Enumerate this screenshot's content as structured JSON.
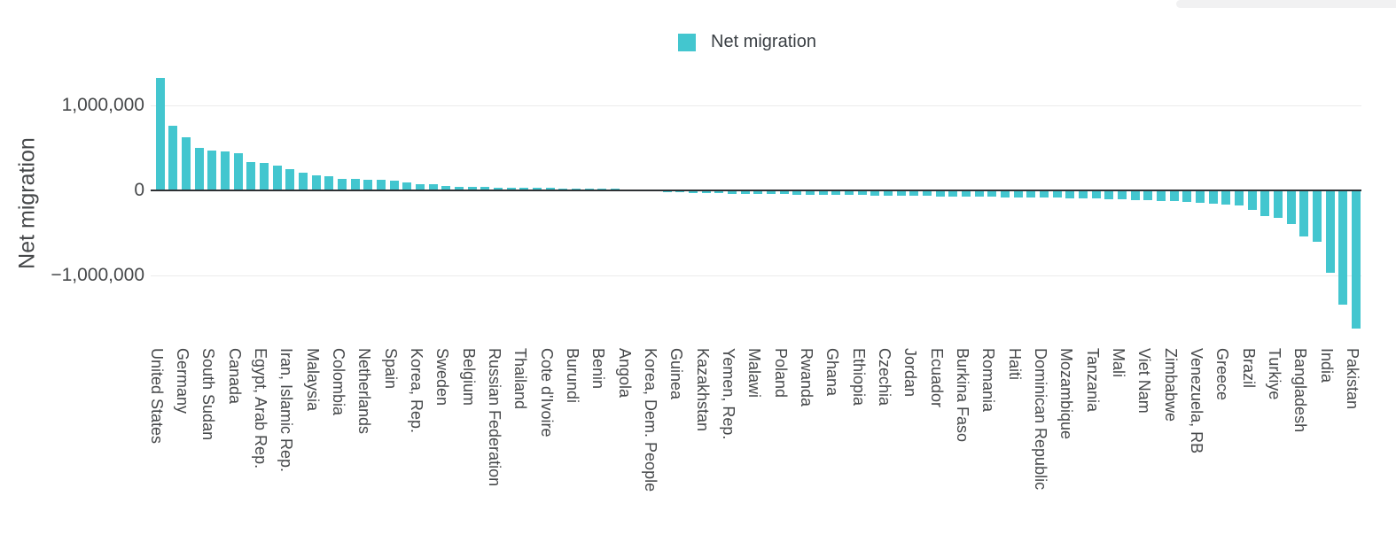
{
  "chart_data": {
    "type": "bar",
    "title": "",
    "legend": [
      "Net migration"
    ],
    "legend_position": "top-center",
    "ylabel": "Net migration",
    "xlabel": "",
    "grid": "horizontal",
    "ylim": [
      -1800000,
      1400000
    ],
    "yticks": [
      {
        "label": "1,000,000",
        "value": 1000000
      },
      {
        "label": "0",
        "value": 0
      },
      {
        "label": "−1,000,000",
        "value": -1000000
      }
    ],
    "bar_color": "#43C6CF",
    "x_label_every_n_bars": 2,
    "x_tick_labels": [
      "United States",
      "Germany",
      "South Sudan",
      "Canada",
      "Egypt, Arab Rep.",
      "Iran, Islamic Rep.",
      "Malaysia",
      "Colombia",
      "Netherlands",
      "Spain",
      "Korea, Rep.",
      "Sweden",
      "Belgium",
      "Russian Federation",
      "Thailand",
      "Cote d'Ivoire",
      "Burundi",
      "Benin",
      "Angola",
      "Korea, Dem. People",
      "Guinea",
      "Kazakhstan",
      "Yemen, Rep.",
      "Malawi",
      "Poland",
      "Rwanda",
      "Ghana",
      "Ethiopia",
      "Czechia",
      "Jordan",
      "Ecuador",
      "Burkina Faso",
      "Romania",
      "Haiti",
      "Dominican Republic",
      "Mozambique",
      "Tanzania",
      "Mali",
      "Viet Nam",
      "Zimbabwe",
      "Venezuela, RB",
      "Greece",
      "Brazil",
      "Turkiye",
      "Bangladesh",
      "India",
      "Pakistan"
    ],
    "series": [
      {
        "name": "Net migration",
        "values": [
          1320000,
          760000,
          620000,
          500000,
          470000,
          455000,
          440000,
          330000,
          320000,
          290000,
          250000,
          210000,
          175000,
          170000,
          140000,
          138000,
          128000,
          125000,
          118000,
          95000,
          75000,
          72000,
          50000,
          45000,
          40000,
          38000,
          36000,
          34000,
          32000,
          30000,
          28000,
          26000,
          24000,
          22000,
          20000,
          17000,
          14000,
          8000,
          -8000,
          -20000,
          -25000,
          -28000,
          -31000,
          -34000,
          -37000,
          -39000,
          -41000,
          -43000,
          -45000,
          -47000,
          -49000,
          -51000,
          -53000,
          -55000,
          -57000,
          -59000,
          -61000,
          -63000,
          -65000,
          -67000,
          -69000,
          -71000,
          -73000,
          -75000,
          -77000,
          -79000,
          -81000,
          -83000,
          -85000,
          -88000,
          -91000,
          -94000,
          -97000,
          -100000,
          -105000,
          -110000,
          -115000,
          -120000,
          -130000,
          -135000,
          -148000,
          -155000,
          -167000,
          -175000,
          -230000,
          -300000,
          -320000,
          -400000,
          -540000,
          -600000,
          -970000,
          -1340000,
          -1620000
        ]
      }
    ]
  }
}
